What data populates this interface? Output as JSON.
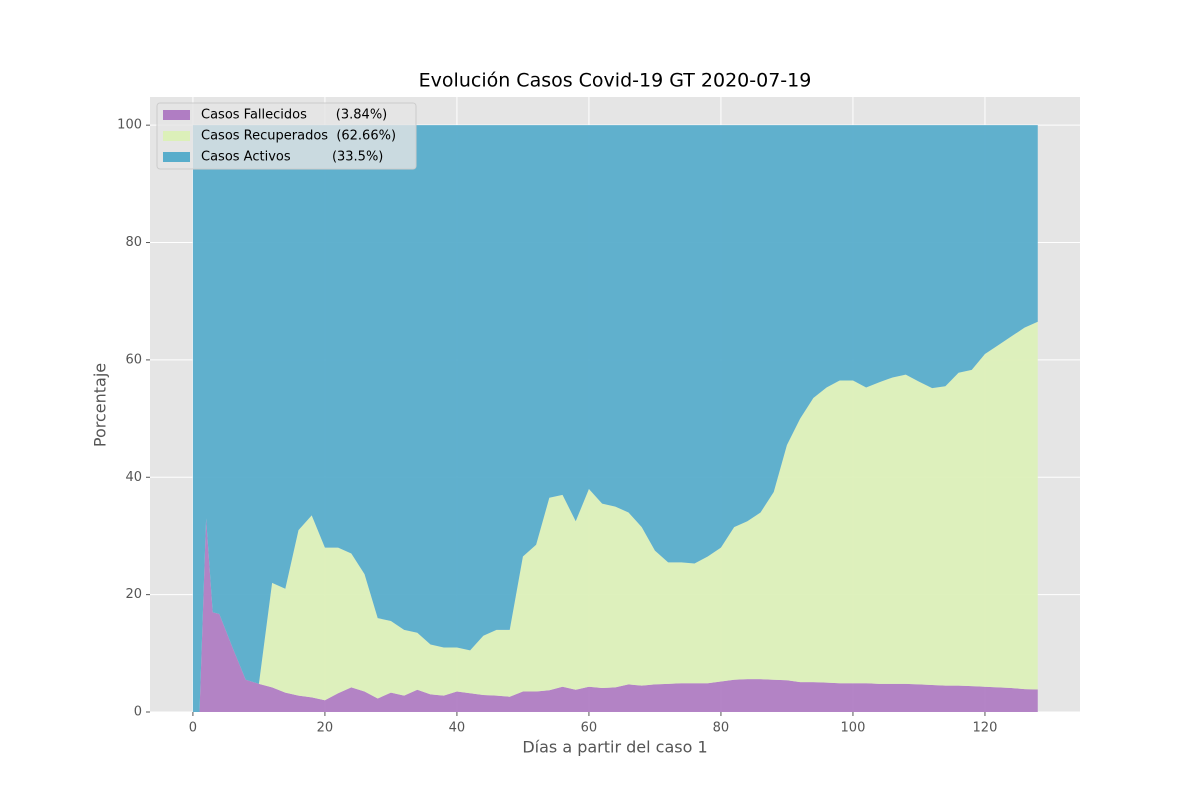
{
  "chart_data": {
    "type": "stacked-area",
    "title": "Evolución Casos Covid-19 GT 2020-07-19",
    "x_label": "Días a partir del caso 1",
    "y_label": "Porcentaje",
    "x": [
      0,
      1,
      2,
      3,
      4,
      6,
      8,
      10,
      12,
      14,
      16,
      18,
      20,
      22,
      24,
      26,
      28,
      30,
      32,
      34,
      36,
      38,
      40,
      42,
      44,
      46,
      48,
      50,
      52,
      54,
      56,
      58,
      60,
      62,
      64,
      66,
      68,
      70,
      72,
      74,
      76,
      78,
      80,
      82,
      84,
      86,
      88,
      90,
      92,
      94,
      96,
      98,
      100,
      102,
      104,
      106,
      108,
      110,
      112,
      114,
      116,
      118,
      120,
      122,
      124,
      126,
      128
    ],
    "series": [
      {
        "name": "Casos Fallecidos       (3.84%)",
        "color": "#b07dc3",
        "values": [
          0,
          0,
          33,
          17,
          16.7,
          11,
          5.5,
          4.8,
          4.2,
          3.3,
          2.8,
          2.5,
          2.0,
          3.2,
          4.2,
          3.5,
          2.3,
          3.3,
          2.8,
          3.8,
          3.0,
          2.8,
          3.5,
          3.2,
          2.9,
          2.8,
          2.6,
          3.5,
          3.5,
          3.7,
          4.3,
          3.8,
          4.3,
          4.1,
          4.2,
          4.7,
          4.5,
          4.7,
          4.8,
          4.9,
          4.9,
          4.9,
          5.2,
          5.5,
          5.6,
          5.6,
          5.5,
          5.4,
          5.1,
          5.1,
          5.0,
          4.9,
          4.9,
          4.9,
          4.8,
          4.8,
          4.8,
          4.7,
          4.6,
          4.5,
          4.5,
          4.4,
          4.3,
          4.2,
          4.1,
          3.9,
          3.84
        ]
      },
      {
        "name": "Casos Recuperados  (62.66%)",
        "color": "#dcf0b9",
        "values": [
          0,
          0,
          0,
          0,
          0,
          0,
          0,
          0,
          17.8,
          17.7,
          28.2,
          31,
          26,
          24.8,
          22.8,
          20,
          13.7,
          12.2,
          11.2,
          9.7,
          8.5,
          8.2,
          7.5,
          7.3,
          10.1,
          11.2,
          11.4,
          23,
          25,
          32.8,
          32.7,
          28.7,
          33.7,
          31.4,
          30.8,
          29.3,
          27,
          22.8,
          20.7,
          20.6,
          20.4,
          21.6,
          22.8,
          26,
          26.9,
          28.4,
          32,
          40.1,
          44.9,
          48.4,
          50.3,
          51.6,
          51.6,
          50.4,
          51.4,
          52.2,
          52.7,
          51.6,
          50.6,
          51,
          53.3,
          53.9,
          56.7,
          58.3,
          59.9,
          61.6,
          62.66
        ]
      },
      {
        "name": "Casos Activos          (33.5%)",
        "color": "#58adcb",
        "values": [
          100,
          100,
          67,
          83,
          83.3,
          89,
          94.5,
          95.2,
          78,
          79,
          69,
          66.5,
          72,
          72,
          73,
          76.5,
          84,
          84.5,
          86,
          86.5,
          88.5,
          89,
          89,
          89.5,
          87,
          86,
          86,
          73.5,
          71.5,
          63.5,
          63,
          67.5,
          62,
          64.5,
          65,
          66,
          68.5,
          72.5,
          74.5,
          74.5,
          74.7,
          73.5,
          72,
          68.5,
          67.5,
          66,
          62.5,
          54.5,
          50,
          46.5,
          44.7,
          43.5,
          43.5,
          44.7,
          43.8,
          43,
          42.5,
          43.7,
          44.8,
          44.5,
          42.2,
          41.7,
          39,
          37.5,
          36,
          34.5,
          33.5
        ]
      }
    ],
    "xlim": [
      -6.5,
      134.4
    ],
    "ylim": [
      0,
      104.8
    ],
    "xticks": [
      0,
      20,
      40,
      60,
      80,
      100,
      120
    ],
    "yticks": [
      0,
      20,
      40,
      60,
      80,
      100
    ],
    "grid": true,
    "legend": "upper left"
  }
}
